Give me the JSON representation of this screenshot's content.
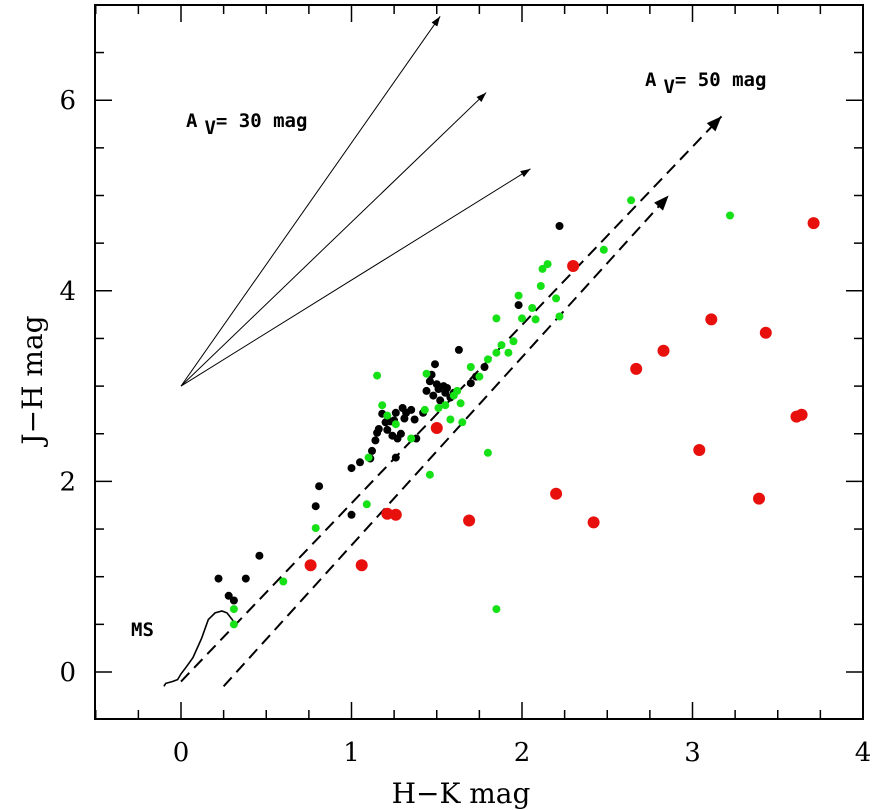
{
  "chart_data": {
    "type": "scatter",
    "xlabel": "H−K mag",
    "ylabel": "J−H mag",
    "xlim": [
      -0.5,
      4.0
    ],
    "ylim": [
      -0.5,
      7.0
    ],
    "xticks": [
      0,
      1,
      2,
      3,
      4
    ],
    "yticks": [
      0,
      2,
      4,
      6
    ],
    "xtick_labels": [
      "0",
      "1",
      "2",
      "3",
      "4"
    ],
    "ytick_labels": [
      "0",
      "2",
      "4",
      "6"
    ],
    "grid": false,
    "colors": {
      "black": "#000000",
      "green": "#16e016",
      "red": "#e8100c"
    },
    "annotations": {
      "av30": {
        "prefix": "A",
        "sub": "V",
        "rest": "= 30 mag"
      },
      "av50": {
        "prefix": "A",
        "sub": "V",
        "rest": "= 50 mag"
      },
      "ms": "MS"
    },
    "main_sequence": [
      [
        -0.1,
        -0.15
      ],
      [
        -0.09,
        -0.12
      ],
      [
        -0.05,
        -0.1
      ],
      [
        -0.02,
        -0.08
      ],
      [
        0.0,
        -0.02
      ],
      [
        0.03,
        0.05
      ],
      [
        0.07,
        0.15
      ],
      [
        0.12,
        0.35
      ],
      [
        0.16,
        0.55
      ],
      [
        0.2,
        0.62
      ],
      [
        0.24,
        0.64
      ],
      [
        0.27,
        0.62
      ],
      [
        0.3,
        0.55
      ],
      [
        0.31,
        0.52
      ]
    ],
    "solid_vectors": [
      {
        "from": [
          0.0,
          3.0
        ],
        "to": [
          1.52,
          6.88
        ]
      },
      {
        "from": [
          0.0,
          3.0
        ],
        "to": [
          1.79,
          6.08
        ]
      },
      {
        "from": [
          0.0,
          3.0
        ],
        "to": [
          2.05,
          5.28
        ]
      }
    ],
    "dashed_vectors": [
      {
        "from": [
          0.0,
          -0.1
        ],
        "to": [
          3.17,
          5.83
        ]
      },
      {
        "from": [
          0.25,
          -0.15
        ],
        "to": [
          2.86,
          5.0
        ]
      }
    ],
    "series": [
      {
        "name": "black",
        "marker_size": "small",
        "points": [
          [
            0.22,
            0.98
          ],
          [
            0.28,
            0.8
          ],
          [
            0.31,
            0.75
          ],
          [
            0.38,
            0.98
          ],
          [
            0.46,
            1.22
          ],
          [
            0.79,
            1.74
          ],
          [
            0.81,
            1.95
          ],
          [
            1.0,
            1.65
          ],
          [
            1.0,
            2.14
          ],
          [
            1.05,
            2.2
          ],
          [
            1.11,
            2.24
          ],
          [
            1.12,
            2.32
          ],
          [
            1.14,
            2.43
          ],
          [
            1.15,
            2.51
          ],
          [
            1.16,
            2.55
          ],
          [
            1.18,
            2.71
          ],
          [
            1.2,
            2.62
          ],
          [
            1.21,
            2.54
          ],
          [
            1.23,
            2.63
          ],
          [
            1.24,
            2.48
          ],
          [
            1.25,
            2.64
          ],
          [
            1.26,
            2.72
          ],
          [
            1.27,
            2.45
          ],
          [
            1.29,
            2.5
          ],
          [
            1.3,
            2.77
          ],
          [
            1.31,
            2.66
          ],
          [
            1.32,
            2.72
          ],
          [
            1.35,
            2.75
          ],
          [
            1.37,
            2.65
          ],
          [
            1.42,
            2.72
          ],
          [
            1.44,
            2.95
          ],
          [
            1.46,
            3.05
          ],
          [
            1.47,
            3.12
          ],
          [
            1.48,
            2.9
          ],
          [
            1.49,
            3.23
          ],
          [
            1.5,
            3.02
          ],
          [
            1.51,
            2.97
          ],
          [
            1.52,
            2.85
          ],
          [
            1.54,
            3.0
          ],
          [
            1.55,
            2.93
          ],
          [
            1.56,
            2.98
          ],
          [
            1.58,
            2.88
          ],
          [
            1.6,
            2.93
          ],
          [
            1.63,
            3.38
          ],
          [
            1.7,
            3.03
          ],
          [
            1.73,
            3.1
          ],
          [
            1.78,
            3.2
          ],
          [
            1.98,
            3.85
          ],
          [
            2.22,
            4.68
          ],
          [
            1.26,
            2.25
          ],
          [
            1.38,
            2.45
          ]
        ]
      },
      {
        "name": "green",
        "marker_size": "small",
        "points": [
          [
            0.31,
            0.5
          ],
          [
            0.31,
            0.66
          ],
          [
            0.6,
            0.95
          ],
          [
            0.79,
            1.51
          ],
          [
            1.09,
            1.76
          ],
          [
            1.1,
            2.25
          ],
          [
            1.15,
            3.11
          ],
          [
            1.18,
            2.8
          ],
          [
            1.21,
            2.69
          ],
          [
            1.26,
            2.6
          ],
          [
            1.35,
            2.45
          ],
          [
            1.43,
            2.75
          ],
          [
            1.44,
            3.13
          ],
          [
            1.46,
            2.07
          ],
          [
            1.51,
            2.77
          ],
          [
            1.55,
            2.8
          ],
          [
            1.58,
            2.65
          ],
          [
            1.62,
            2.95
          ],
          [
            1.65,
            2.62
          ],
          [
            1.7,
            3.2
          ],
          [
            1.75,
            3.1
          ],
          [
            1.8,
            2.3
          ],
          [
            1.8,
            3.28
          ],
          [
            1.85,
            0.66
          ],
          [
            1.85,
            3.35
          ],
          [
            1.85,
            3.71
          ],
          [
            1.88,
            3.43
          ],
          [
            1.92,
            3.35
          ],
          [
            1.95,
            3.47
          ],
          [
            1.98,
            3.95
          ],
          [
            2.0,
            3.71
          ],
          [
            2.06,
            3.82
          ],
          [
            2.08,
            3.7
          ],
          [
            2.11,
            4.05
          ],
          [
            2.12,
            4.23
          ],
          [
            2.15,
            4.28
          ],
          [
            2.2,
            3.92
          ],
          [
            2.22,
            3.73
          ],
          [
            2.48,
            4.43
          ],
          [
            2.64,
            4.95
          ],
          [
            3.22,
            4.79
          ],
          [
            1.64,
            2.82
          ],
          [
            1.6,
            2.9
          ]
        ]
      },
      {
        "name": "red",
        "marker_size": "large",
        "points": [
          [
            0.76,
            1.12
          ],
          [
            1.06,
            1.12
          ],
          [
            1.21,
            1.66
          ],
          [
            1.26,
            1.65
          ],
          [
            1.5,
            2.56
          ],
          [
            1.69,
            1.59
          ],
          [
            2.2,
            1.87
          ],
          [
            2.3,
            4.26
          ],
          [
            2.42,
            1.57
          ],
          [
            2.67,
            3.18
          ],
          [
            2.83,
            3.37
          ],
          [
            3.04,
            2.33
          ],
          [
            3.11,
            3.7
          ],
          [
            3.39,
            1.82
          ],
          [
            3.43,
            3.56
          ],
          [
            3.61,
            2.68
          ],
          [
            3.64,
            2.7
          ],
          [
            3.71,
            4.71
          ]
        ]
      }
    ]
  }
}
